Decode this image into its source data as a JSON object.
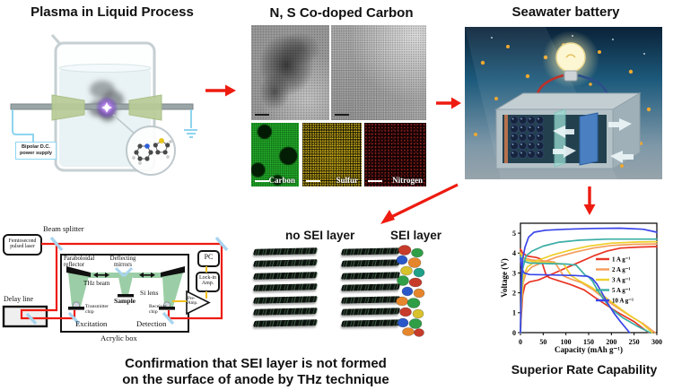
{
  "figure": {
    "titles": {
      "plasma": "Plasma in Liquid Process",
      "carbon": "N, S Co-doped Carbon",
      "battery": "Seawater battery"
    },
    "plasma": {
      "power_supply": "Bipolar D.C.\npower supply"
    },
    "carbon_maps": {
      "labels": [
        "Carbon",
        "Sulfur",
        "Nitrogen"
      ]
    },
    "sei": {
      "no_sei": "no SEI layer",
      "sei": "SEI layer"
    },
    "thz": {
      "beam_splitter": "Beam splitter",
      "laser": "Femtosecond\npulsed laser",
      "delay_line": "Delay line",
      "paraboloidal": "Paraboloidal\nreflector",
      "deflecting": "Deflecting\nmirrors",
      "thz_beam": "THz beam",
      "sample": "Sample",
      "si_lens": "Si lens",
      "transmitter": "Transmitter\nchip",
      "receiver": "Receiver\nchip",
      "excitation": "Excitation",
      "detection": "Detection",
      "acrylic": "Acrylic box",
      "pc": "PC",
      "lockin": "Lock-in\nAmp.",
      "preamp": "Pre-\nAmp."
    },
    "captions": {
      "thz_line1": "Confirmation that SEI layer is not formed",
      "thz_line2": "on the surface of anode by THz technique",
      "chart": "Superior Rate Capability"
    },
    "accent_arrow_color": "#ee1b10"
  },
  "chart_data": {
    "type": "line",
    "title": "",
    "xlabel": "Capacity (mAh g⁻¹)",
    "ylabel": "Voltage (V)",
    "xlim": [
      0,
      300
    ],
    "ylim": [
      0,
      5.5
    ],
    "xticks": [
      0,
      50,
      100,
      150,
      200,
      250,
      300
    ],
    "yticks": [
      0,
      1,
      2,
      3,
      4,
      5
    ],
    "grid": false,
    "legend_position": "right-middle",
    "series": [
      {
        "name": "1 A g⁻¹",
        "color": "#e93323",
        "lines": [
          [
            [
              0,
              0
            ],
            [
              2,
              0.9
            ],
            [
              5,
              1.9
            ],
            [
              10,
              2.4
            ],
            [
              20,
              2.55
            ],
            [
              40,
              2.65
            ],
            [
              55,
              2.8
            ],
            [
              75,
              3.0
            ],
            [
              100,
              3.25
            ],
            [
              130,
              3.55
            ],
            [
              160,
              3.85
            ],
            [
              190,
              4.1
            ],
            [
              220,
              4.25
            ],
            [
              260,
              4.3
            ],
            [
              300,
              4.33
            ]
          ],
          [
            [
              0,
              4.2
            ],
            [
              5,
              4.0
            ],
            [
              15,
              3.85
            ],
            [
              35,
              3.78
            ],
            [
              45,
              3.7
            ],
            [
              50,
              3.35
            ],
            [
              57,
              2.85
            ],
            [
              65,
              2.75
            ],
            [
              85,
              2.6
            ],
            [
              110,
              2.42
            ],
            [
              140,
              2.15
            ],
            [
              165,
              1.75
            ],
            [
              185,
              1.45
            ],
            [
              215,
              1.0
            ],
            [
              250,
              0.55
            ],
            [
              282,
              0
            ]
          ]
        ]
      },
      {
        "name": "2 A g⁻¹",
        "color": "#f49d5a",
        "lines": [
          [
            [
              0,
              0
            ],
            [
              2,
              1.2
            ],
            [
              6,
              2.5
            ],
            [
              12,
              3.0
            ],
            [
              25,
              3.3
            ],
            [
              50,
              3.55
            ],
            [
              80,
              3.8
            ],
            [
              120,
              4.05
            ],
            [
              160,
              4.25
            ],
            [
              200,
              4.38
            ],
            [
              250,
              4.44
            ],
            [
              300,
              4.46
            ]
          ],
          [
            [
              0,
              4.05
            ],
            [
              8,
              3.75
            ],
            [
              25,
              3.65
            ],
            [
              55,
              3.6
            ],
            [
              75,
              3.55
            ],
            [
              85,
              3.2
            ],
            [
              95,
              2.85
            ],
            [
              110,
              2.7
            ],
            [
              135,
              2.5
            ],
            [
              160,
              2.15
            ],
            [
              185,
              1.7
            ],
            [
              210,
              1.3
            ],
            [
              240,
              0.85
            ],
            [
              270,
              0.45
            ],
            [
              296,
              0
            ]
          ]
        ]
      },
      {
        "name": "3 A g⁻¹",
        "color": "#eecf2c",
        "lines": [
          [
            [
              0,
              0
            ],
            [
              2,
              1.5
            ],
            [
              6,
              2.8
            ],
            [
              15,
              3.3
            ],
            [
              35,
              3.6
            ],
            [
              70,
              3.9
            ],
            [
              110,
              4.15
            ],
            [
              150,
              4.35
            ],
            [
              200,
              4.5
            ],
            [
              260,
              4.56
            ],
            [
              300,
              4.57
            ]
          ],
          [
            [
              0,
              3.98
            ],
            [
              10,
              3.65
            ],
            [
              35,
              3.55
            ],
            [
              70,
              3.5
            ],
            [
              95,
              3.45
            ],
            [
              103,
              3.15
            ],
            [
              112,
              2.85
            ],
            [
              130,
              2.6
            ],
            [
              155,
              2.3
            ],
            [
              180,
              1.9
            ],
            [
              205,
              1.45
            ],
            [
              235,
              0.95
            ],
            [
              265,
              0.5
            ],
            [
              290,
              0
            ]
          ]
        ]
      },
      {
        "name": "5 A g⁻¹",
        "color": "#3aada5",
        "lines": [
          [
            [
              0,
              0
            ],
            [
              2,
              2.0
            ],
            [
              5,
              3.2
            ],
            [
              12,
              3.85
            ],
            [
              25,
              4.1
            ],
            [
              50,
              4.35
            ],
            [
              85,
              4.55
            ],
            [
              130,
              4.65
            ],
            [
              190,
              4.7
            ],
            [
              300,
              4.7
            ]
          ],
          [
            [
              0,
              3.85
            ],
            [
              5,
              3.6
            ],
            [
              20,
              3.5
            ],
            [
              60,
              3.47
            ],
            [
              100,
              3.45
            ],
            [
              122,
              3.4
            ],
            [
              132,
              3.15
            ],
            [
              142,
              2.9
            ],
            [
              150,
              2.8
            ],
            [
              158,
              2.6
            ],
            [
              168,
              2.2
            ],
            [
              182,
              1.7
            ],
            [
              200,
              1.2
            ],
            [
              225,
              0.75
            ],
            [
              255,
              0.35
            ],
            [
              285,
              0
            ]
          ]
        ]
      },
      {
        "name": "10 A g⁻¹",
        "color": "#3a45e8",
        "lines": [
          [
            [
              0,
              0
            ],
            [
              2,
              2.6
            ],
            [
              5,
              3.7
            ],
            [
              10,
              4.3
            ],
            [
              18,
              4.8
            ],
            [
              30,
              5.05
            ],
            [
              55,
              5.15
            ],
            [
              100,
              5.2
            ],
            [
              160,
              5.24
            ],
            [
              220,
              5.25
            ],
            [
              270,
              5.2
            ],
            [
              300,
              5.05
            ]
          ],
          [
            [
              0,
              3.75
            ],
            [
              3,
              3.2
            ],
            [
              8,
              3.0
            ],
            [
              20,
              2.92
            ],
            [
              70,
              2.9
            ],
            [
              120,
              2.87
            ],
            [
              148,
              2.83
            ],
            [
              158,
              2.72
            ],
            [
              168,
              2.45
            ],
            [
              178,
              2.05
            ],
            [
              190,
              1.55
            ],
            [
              205,
              1.0
            ],
            [
              220,
              0.55
            ],
            [
              240,
              0
            ]
          ]
        ]
      }
    ]
  }
}
